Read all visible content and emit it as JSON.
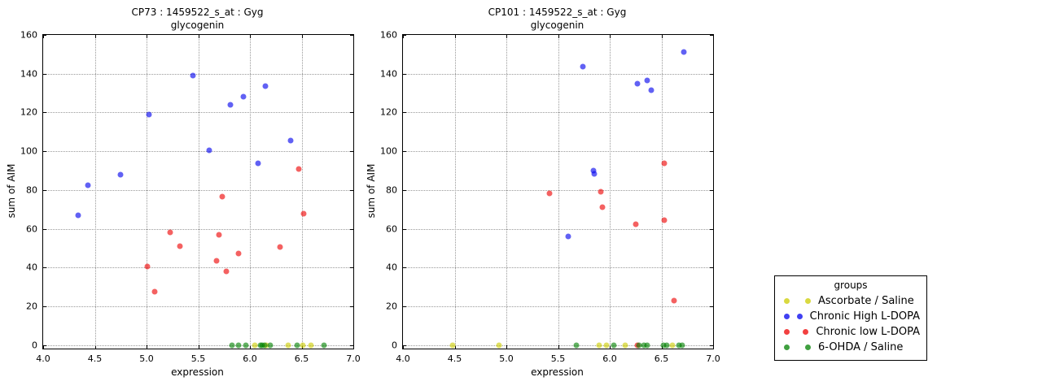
{
  "chart_data": [
    {
      "type": "scatter",
      "title": "CP73 : 1459522_s_at : Gyg",
      "subtitle": "glycogenin",
      "xlabel": "expression",
      "ylabel": "sum of AIM",
      "xlim": [
        4.0,
        7.0
      ],
      "ylim": [
        0,
        160
      ],
      "xticks": [
        4.0,
        4.5,
        5.0,
        5.5,
        6.0,
        6.5,
        7.0
      ],
      "xtick_labels": [
        "4.0",
        "4.5",
        "5.0",
        "5.5",
        "6.0",
        "6.5",
        "7.0"
      ],
      "yticks": [
        0,
        20,
        40,
        60,
        80,
        100,
        120,
        140,
        160
      ],
      "ytick_labels": [
        "0",
        "20",
        "40",
        "60",
        "80",
        "100",
        "120",
        "140",
        "160"
      ],
      "grid": "dotted",
      "legend_position": "outside-right",
      "series": [
        {
          "name": "Ascorbate / Saline",
          "color": "#cccc00",
          "points": [
            [
              6.05,
              0
            ],
            [
              6.16,
              0
            ],
            [
              6.37,
              0
            ],
            [
              6.51,
              0
            ],
            [
              6.59,
              0
            ]
          ]
        },
        {
          "name": "Chronic High L-DOPA",
          "color": "#0000ee",
          "points": [
            [
              4.34,
              67
            ],
            [
              4.43,
              82.5
            ],
            [
              4.75,
              88
            ],
            [
              5.02,
              119
            ],
            [
              5.45,
              139
            ],
            [
              5.61,
              100.5
            ],
            [
              5.81,
              124
            ],
            [
              5.94,
              128
            ],
            [
              6.08,
              94
            ],
            [
              6.15,
              133.5
            ],
            [
              6.39,
              105.5
            ]
          ]
        },
        {
          "name": "Chronic low L-DOPA",
          "color": "#ee0000",
          "points": [
            [
              5.01,
              40.5
            ],
            [
              5.08,
              27.5
            ],
            [
              5.23,
              58
            ],
            [
              5.32,
              51
            ],
            [
              5.68,
              43.5
            ],
            [
              5.7,
              57
            ],
            [
              5.73,
              76.5
            ],
            [
              5.77,
              38
            ],
            [
              5.89,
              47.5
            ],
            [
              6.29,
              50.5
            ],
            [
              6.47,
              91
            ],
            [
              6.52,
              68
            ]
          ]
        },
        {
          "name": "6-OHDA / Saline",
          "color": "#008000",
          "points": [
            [
              5.83,
              0
            ],
            [
              5.89,
              0
            ],
            [
              5.96,
              0
            ],
            [
              6.1,
              0
            ],
            [
              6.12,
              0
            ],
            [
              6.14,
              0
            ],
            [
              6.2,
              0
            ],
            [
              6.46,
              0
            ],
            [
              6.72,
              0
            ]
          ]
        }
      ]
    },
    {
      "type": "scatter",
      "title": "CP101 : 1459522_s_at : Gyg",
      "subtitle": "glycogenin",
      "xlabel": "expression",
      "ylabel": "sum of AIM",
      "xlim": [
        4.0,
        7.0
      ],
      "ylim": [
        0,
        160
      ],
      "xticks": [
        4.0,
        4.5,
        5.0,
        5.5,
        6.0,
        6.5,
        7.0
      ],
      "xtick_labels": [
        "4.0",
        "4.5",
        "5.0",
        "5.5",
        "6.0",
        "6.5",
        "7.0"
      ],
      "yticks": [
        0,
        20,
        40,
        60,
        80,
        100,
        120,
        140,
        160
      ],
      "ytick_labels": [
        "0",
        "20",
        "40",
        "60",
        "80",
        "100",
        "120",
        "140",
        "160"
      ],
      "grid": "dotted",
      "legend_position": "outside-right",
      "series": [
        {
          "name": "Ascorbate / Saline",
          "color": "#cccc00",
          "points": [
            [
              4.48,
              0
            ],
            [
              4.93,
              0
            ],
            [
              5.9,
              0
            ],
            [
              5.97,
              0
            ],
            [
              6.15,
              0
            ],
            [
              6.61,
              0
            ]
          ]
        },
        {
          "name": "Chronic High L-DOPA",
          "color": "#0000ee",
          "points": [
            [
              5.6,
              56
            ],
            [
              5.74,
              143.5
            ],
            [
              5.84,
              90
            ],
            [
              5.85,
              88.5
            ],
            [
              6.27,
              135
            ],
            [
              6.36,
              136.5
            ],
            [
              6.4,
              131.5
            ],
            [
              6.72,
              151
            ]
          ]
        },
        {
          "name": "Chronic low L-DOPA",
          "color": "#ee0000",
          "points": [
            [
              5.42,
              78.5
            ],
            [
              5.91,
              79
            ],
            [
              5.93,
              71
            ],
            [
              6.25,
              62.5
            ],
            [
              6.53,
              94
            ],
            [
              6.53,
              64.5
            ],
            [
              6.62,
              23
            ],
            [
              6.27,
              0
            ]
          ]
        },
        {
          "name": "6-OHDA / Saline",
          "color": "#008000",
          "points": [
            [
              5.68,
              0
            ],
            [
              6.04,
              0
            ],
            [
              6.28,
              0
            ],
            [
              6.33,
              0
            ],
            [
              6.36,
              0
            ],
            [
              6.52,
              0
            ],
            [
              6.55,
              0
            ],
            [
              6.67,
              0
            ],
            [
              6.7,
              0
            ]
          ]
        }
      ]
    }
  ],
  "legend": {
    "title": "groups",
    "entries": [
      {
        "label": "Ascorbate / Saline",
        "color": "#cccc00"
      },
      {
        "label": "Chronic High L-DOPA",
        "color": "#0000ee"
      },
      {
        "label": "Chronic low L-DOPA",
        "color": "#ee0000"
      },
      {
        "label": "6-OHDA / Saline",
        "color": "#008000"
      }
    ]
  }
}
